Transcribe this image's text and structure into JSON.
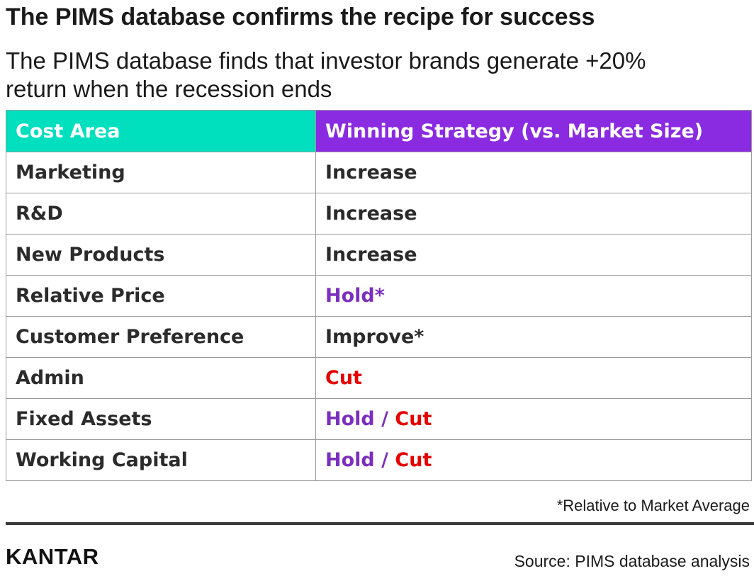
{
  "title": "The PIMS database confirms the recipe for success",
  "subtitle": {
    "line1": "The PIMS database finds that investor brands generate +20%",
    "line2": "return when the recession ends"
  },
  "table": {
    "headers": {
      "cost_area": "Cost Area",
      "strategy": "Winning Strategy (vs. Market Size)"
    },
    "rows": [
      {
        "cost_area": "Marketing",
        "strategy": [
          {
            "text": "Increase",
            "color": "#2b2b2b"
          }
        ]
      },
      {
        "cost_area": "R&D",
        "strategy": [
          {
            "text": "Increase",
            "color": "#2b2b2b"
          }
        ]
      },
      {
        "cost_area": "New Products",
        "strategy": [
          {
            "text": "Increase",
            "color": "#2b2b2b"
          }
        ]
      },
      {
        "cost_area": "Relative Price",
        "strategy": [
          {
            "text": "Hold*",
            "color": "#7b2fbe"
          }
        ]
      },
      {
        "cost_area": "Customer Preference",
        "strategy": [
          {
            "text": "Improve*",
            "color": "#2b2b2b"
          }
        ]
      },
      {
        "cost_area": "Admin",
        "strategy": [
          {
            "text": "Cut",
            "color": "#e60000"
          }
        ]
      },
      {
        "cost_area": "Fixed Assets",
        "strategy": [
          {
            "text": "Hold",
            "color": "#7b2fbe"
          },
          {
            "text": " / ",
            "color": "#7b2fbe"
          },
          {
            "text": "Cut",
            "color": "#e60000"
          }
        ]
      },
      {
        "cost_area": "Working Capital",
        "strategy": [
          {
            "text": "Hold",
            "color": "#7b2fbe"
          },
          {
            "text": " / ",
            "color": "#7b2fbe"
          },
          {
            "text": "Cut",
            "color": "#e60000"
          }
        ]
      }
    ]
  },
  "footnote": "*Relative to Market Average",
  "brand": "KANTAR",
  "source": "Source: PIMS database analysis",
  "colors": {
    "header_cost_bg": "#00e0bf",
    "header_strategy_bg": "#8a2be2",
    "purple_text": "#7b2fbe",
    "red_text": "#e60000"
  }
}
